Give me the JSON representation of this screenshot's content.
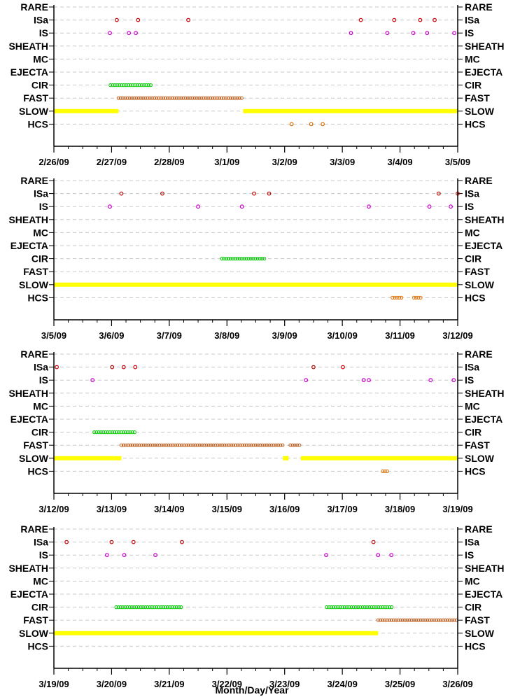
{
  "chart_data": [
    {
      "type": "scatter",
      "categories": [
        "RARE",
        "ISa",
        "IS",
        "SHEATH",
        "MC",
        "EJECTA",
        "CIR",
        "FAST",
        "SLOW",
        "HCS"
      ],
      "xlim": [
        "2/26/09",
        "3/5/09"
      ],
      "xticks": [
        "2/26/09",
        "2/27/09",
        "2/28/09",
        "3/1/09",
        "3/2/09",
        "3/3/09",
        "3/4/09",
        "3/5/09"
      ],
      "series": [
        {
          "category": "ISa",
          "color": "#c00000",
          "kind": "points",
          "x": [
            1.09,
            1.46,
            2.33,
            5.32,
            5.9,
            6.35,
            6.6
          ]
        },
        {
          "category": "IS",
          "color": "#cc00cc",
          "kind": "points",
          "x": [
            0.97,
            1.3,
            1.42,
            5.15,
            5.78,
            6.23,
            6.47,
            6.94
          ]
        },
        {
          "category": "CIR",
          "color": "#00cc00",
          "kind": "range",
          "x": [
            [
              0.98,
              1.69
            ]
          ]
        },
        {
          "category": "FAST",
          "color": "#c06020",
          "kind": "range",
          "x": [
            [
              1.12,
              3.28
            ]
          ]
        },
        {
          "category": "SLOW",
          "color": "#ffff00",
          "kind": "bar",
          "x": [
            [
              0.0,
              1.12
            ],
            [
              3.28,
              7.15
            ]
          ]
        },
        {
          "category": "HCS",
          "color": "#e07000",
          "kind": "points",
          "x": [
            4.12,
            4.46,
            4.66
          ]
        }
      ],
      "xlabel": ""
    },
    {
      "type": "scatter",
      "categories": [
        "RARE",
        "ISa",
        "IS",
        "SHEATH",
        "MC",
        "EJECTA",
        "CIR",
        "FAST",
        "SLOW",
        "HCS"
      ],
      "xlim": [
        "3/5/09",
        "3/12/09"
      ],
      "xticks": [
        "3/5/09",
        "3/6/09",
        "3/7/09",
        "3/8/09",
        "3/9/09",
        "3/10/09",
        "3/11/09",
        "3/12/09"
      ],
      "series": [
        {
          "category": "ISa",
          "color": "#c00000",
          "kind": "points",
          "x": [
            1.17,
            1.88,
            3.47,
            3.73,
            6.67,
            7.0
          ]
        },
        {
          "category": "IS",
          "color": "#cc00cc",
          "kind": "points",
          "x": [
            0.97,
            2.5,
            3.26,
            5.46,
            6.51,
            6.88
          ]
        },
        {
          "category": "CIR",
          "color": "#00cc00",
          "kind": "range",
          "x": [
            [
              2.91,
              3.68
            ]
          ]
        },
        {
          "category": "SLOW",
          "color": "#ffff00",
          "kind": "bar",
          "x": [
            [
              0.0,
              7.15
            ]
          ]
        },
        {
          "category": "HCS",
          "color": "#e07000",
          "kind": "range",
          "x": [
            [
              5.87,
              6.05
            ],
            [
              6.24,
              6.38
            ]
          ]
        }
      ],
      "xlabel": ""
    },
    {
      "type": "scatter",
      "categories": [
        "RARE",
        "ISa",
        "IS",
        "SHEATH",
        "MC",
        "EJECTA",
        "CIR",
        "FAST",
        "SLOW",
        "HCS"
      ],
      "xlim": [
        "3/12/09",
        "3/19/09"
      ],
      "xticks": [
        "3/12/09",
        "3/13/09",
        "3/14/09",
        "3/15/09",
        "3/16/09",
        "3/17/09",
        "3/18/09",
        "3/19/09"
      ],
      "series": [
        {
          "category": "ISa",
          "color": "#c00000",
          "kind": "points",
          "x": [
            0.05,
            1.01,
            1.21,
            1.41,
            4.5,
            5.01
          ]
        },
        {
          "category": "IS",
          "color": "#cc00cc",
          "kind": "points",
          "x": [
            0.67,
            4.37,
            5.37,
            5.46,
            6.53,
            6.93
          ]
        },
        {
          "category": "CIR",
          "color": "#00cc00",
          "kind": "range",
          "x": [
            [
              0.7,
              1.41
            ]
          ]
        },
        {
          "category": "FAST",
          "color": "#c06020",
          "kind": "range",
          "x": [
            [
              1.17,
              3.97
            ],
            [
              4.1,
              4.28
            ]
          ]
        },
        {
          "category": "SLOW",
          "color": "#ffff00",
          "kind": "bar",
          "x": [
            [
              0.0,
              1.17
            ],
            [
              3.97,
              4.07
            ],
            [
              4.28,
              7.15
            ]
          ]
        },
        {
          "category": "HCS",
          "color": "#e07000",
          "kind": "range",
          "x": [
            [
              5.7,
              5.78
            ]
          ]
        }
      ],
      "xlabel": ""
    },
    {
      "type": "scatter",
      "categories": [
        "RARE",
        "ISa",
        "IS",
        "SHEATH",
        "MC",
        "EJECTA",
        "CIR",
        "FAST",
        "SLOW",
        "HCS"
      ],
      "xlim": [
        "3/19/09",
        "3/26/09"
      ],
      "xticks": [
        "3/19/09",
        "3/20/09",
        "3/21/09",
        "3/22/09",
        "3/23/09",
        "3/24/09",
        "3/25/09",
        "3/26/09"
      ],
      "series": [
        {
          "category": "ISa",
          "color": "#c00000",
          "kind": "points",
          "x": [
            0.22,
            1.0,
            1.38,
            2.22,
            5.54
          ]
        },
        {
          "category": "IS",
          "color": "#cc00cc",
          "kind": "points",
          "x": [
            0.92,
            1.22,
            1.76,
            4.72,
            5.62,
            5.85
          ]
        },
        {
          "category": "CIR",
          "color": "#00cc00",
          "kind": "range",
          "x": [
            [
              1.08,
              2.24
            ],
            [
              4.73,
              5.86
            ]
          ]
        },
        {
          "category": "FAST",
          "color": "#c06020",
          "kind": "range",
          "x": [
            [
              5.62,
              7.15
            ]
          ]
        },
        {
          "category": "SLOW",
          "color": "#ffff00",
          "kind": "bar",
          "x": [
            [
              0.0,
              5.62
            ]
          ]
        }
      ],
      "xlabel": "Month/Day/Year"
    }
  ]
}
